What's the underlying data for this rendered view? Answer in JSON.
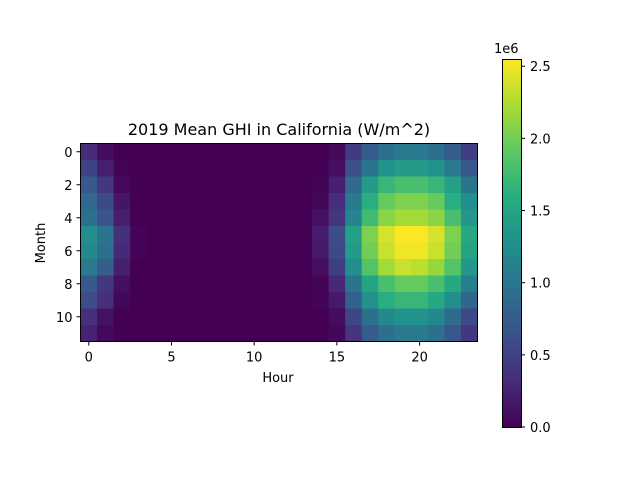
{
  "chart_data": {
    "type": "heatmap",
    "title": "2019 Mean GHI in California (W/m^2)",
    "xlabel": "Hour",
    "ylabel": "Month",
    "x_ticks": [
      0,
      5,
      10,
      15,
      20
    ],
    "y_ticks": [
      0,
      2,
      4,
      6,
      8,
      10
    ],
    "x_categories": [
      0,
      1,
      2,
      3,
      4,
      5,
      6,
      7,
      8,
      9,
      10,
      11,
      12,
      13,
      14,
      15,
      16,
      17,
      18,
      19,
      20,
      21,
      22,
      23
    ],
    "y_categories": [
      0,
      1,
      2,
      3,
      4,
      5,
      6,
      7,
      8,
      9,
      10,
      11
    ],
    "colormap": "viridis",
    "vmin": 0,
    "vmax": 2550000,
    "colorbar": {
      "ticks": [
        0.0,
        0.5,
        1.0,
        1.5,
        2.0,
        2.5
      ],
      "tick_labels": [
        "0.0",
        "0.5",
        "1.0",
        "1.5",
        "2.0",
        "2.5"
      ],
      "multiplier_label": "1e6"
    },
    "z": [
      [
        320000,
        90000,
        0,
        0,
        0,
        0,
        0,
        0,
        0,
        0,
        0,
        0,
        0,
        0,
        0,
        70000,
        450000,
        750000,
        950000,
        1050000,
        1050000,
        950000,
        750000,
        480000
      ],
      [
        520000,
        220000,
        20000,
        0,
        0,
        0,
        0,
        0,
        0,
        0,
        0,
        0,
        0,
        0,
        0,
        100000,
        620000,
        1000000,
        1300000,
        1400000,
        1400000,
        1300000,
        1050000,
        700000
      ],
      [
        720000,
        420000,
        60000,
        0,
        0,
        0,
        0,
        0,
        0,
        0,
        0,
        0,
        0,
        0,
        20000,
        230000,
        880000,
        1400000,
        1700000,
        1800000,
        1800000,
        1700000,
        1450000,
        1000000
      ],
      [
        880000,
        580000,
        150000,
        0,
        0,
        0,
        0,
        0,
        0,
        0,
        0,
        0,
        0,
        0,
        40000,
        330000,
        1050000,
        1600000,
        1950000,
        2050000,
        2050000,
        1950000,
        1600000,
        1250000
      ],
      [
        950000,
        680000,
        220000,
        0,
        0,
        0,
        0,
        0,
        0,
        0,
        0,
        0,
        0,
        0,
        120000,
        400000,
        1150000,
        1750000,
        2100000,
        2200000,
        2200000,
        2100000,
        1800000,
        1350000
      ],
      [
        1250000,
        1000000,
        350000,
        30000,
        0,
        0,
        0,
        0,
        0,
        0,
        0,
        0,
        0,
        0,
        200000,
        600000,
        1450000,
        2050000,
        2400000,
        2550000,
        2550000,
        2400000,
        2050000,
        1550000
      ],
      [
        1200000,
        950000,
        300000,
        20000,
        0,
        0,
        0,
        0,
        0,
        0,
        0,
        0,
        0,
        0,
        180000,
        580000,
        1400000,
        2000000,
        2350000,
        2500000,
        2500000,
        2350000,
        2000000,
        1500000
      ],
      [
        1050000,
        780000,
        220000,
        0,
        0,
        0,
        0,
        0,
        0,
        0,
        0,
        0,
        0,
        0,
        100000,
        480000,
        1250000,
        1850000,
        2200000,
        2350000,
        2300000,
        2150000,
        1850000,
        1350000
      ],
      [
        720000,
        420000,
        100000,
        0,
        0,
        0,
        0,
        0,
        0,
        0,
        0,
        0,
        0,
        0,
        30000,
        300000,
        1000000,
        1500000,
        1800000,
        1950000,
        1950000,
        1800000,
        1550000,
        1100000
      ],
      [
        600000,
        350000,
        50000,
        0,
        0,
        0,
        0,
        0,
        0,
        0,
        0,
        0,
        0,
        0,
        20000,
        180000,
        800000,
        1300000,
        1600000,
        1700000,
        1700000,
        1550000,
        1250000,
        850000
      ],
      [
        350000,
        120000,
        0,
        0,
        0,
        0,
        0,
        0,
        0,
        0,
        0,
        0,
        0,
        0,
        0,
        90000,
        550000,
        950000,
        1200000,
        1300000,
        1300000,
        1200000,
        900000,
        580000
      ],
      [
        250000,
        60000,
        0,
        0,
        0,
        0,
        0,
        0,
        0,
        0,
        0,
        0,
        0,
        0,
        0,
        50000,
        400000,
        750000,
        950000,
        1050000,
        1050000,
        950000,
        700000,
        420000
      ]
    ]
  }
}
